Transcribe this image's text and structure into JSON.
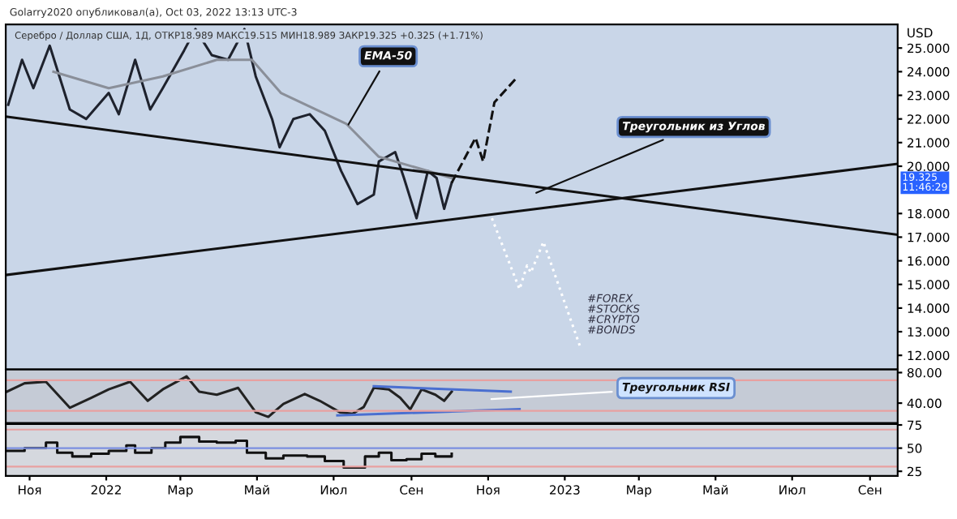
{
  "chart_data": [
    {
      "type": "line",
      "title": "Golarry2020 опубликовал(а), Oct 03, 2022 13:13 UTC-3",
      "subtitle": "Серебро / Доллар США, 1Д, ОТКР18.989 МАКС19.515 МИН18.989 ЗАКР19.325 +0.325 (+1.71%)",
      "ylabel": "USD",
      "xlim": [
        "2021-10-13",
        "2023-09-23"
      ],
      "ylim": [
        11.4,
        26.0
      ],
      "yticks": [
        {
          "value": 12,
          "label": "12.000"
        },
        {
          "value": 13,
          "label": "13.000"
        },
        {
          "value": 14,
          "label": "14.000"
        },
        {
          "value": 15,
          "label": "15.000"
        },
        {
          "value": 16,
          "label": "16.000"
        },
        {
          "value": 17,
          "label": "17.000"
        },
        {
          "value": 18,
          "label": "18.000"
        },
        {
          "value": 20,
          "label": "20.000"
        },
        {
          "value": 21,
          "label": "21.000"
        },
        {
          "value": 22,
          "label": "22.000"
        },
        {
          "value": 23,
          "label": "23.000"
        },
        {
          "value": 24,
          "label": "24.000"
        },
        {
          "value": 25,
          "label": "25.000"
        }
      ],
      "xticks": [
        {
          "value": "2021-11-01",
          "label": null
        },
        {
          "value": "2022-01-01",
          "label": null
        },
        {
          "value": "2022-03-01",
          "label": null
        },
        {
          "value": "2022-05-01",
          "label": null
        },
        {
          "value": "2022-07-01",
          "label": null
        },
        {
          "value": "2022-09-01",
          "label": null
        },
        {
          "value": "2022-11-01",
          "label": null
        },
        {
          "value": "2023-01-01",
          "label": null
        },
        {
          "value": "2023-03-01",
          "label": null
        },
        {
          "value": "2023-05-01",
          "label": null
        },
        {
          "value": "2023-07-01",
          "label": null
        },
        {
          "value": "2023-09-01",
          "label": null
        }
      ],
      "tick_labels": "y",
      "grid": false,
      "series": [
        {
          "color": "#1e222d",
          "x": [
            "2021-10-15",
            "2021-10-26",
            "2021-11-04",
            "2021-11-17",
            "2021-12-03",
            "2021-12-16",
            "2022-01-03",
            "2022-01-11",
            "2022-01-24",
            "2022-02-05",
            "2022-02-15",
            "2022-03-04",
            "2022-03-13",
            "2022-03-26",
            "2022-04-08",
            "2022-04-21",
            "2022-04-30",
            "2022-05-13",
            "2022-05-19",
            "2022-05-30",
            "2022-06-12",
            "2022-06-24",
            "2022-07-07",
            "2022-07-20",
            "2022-08-02",
            "2022-08-06",
            "2022-08-19",
            "2022-08-26",
            "2022-09-05",
            "2022-09-14",
            "2022-09-21",
            "2022-09-27",
            "2022-10-03"
          ],
          "values": [
            22.6,
            24.5,
            23.3,
            25.1,
            22.4,
            22.0,
            23.1,
            22.2,
            24.5,
            22.4,
            23.3,
            24.9,
            25.8,
            24.7,
            24.5,
            25.8,
            23.8,
            22.0,
            20.8,
            22.0,
            22.2,
            21.5,
            19.8,
            18.4,
            18.8,
            20.2,
            20.6,
            19.5,
            17.8,
            19.8,
            19.5,
            18.2,
            19.3
          ]
        },
        {
          "color": "#8a8f99",
          "x": [
            "2021-11-20",
            "2022-01-03",
            "2022-02-15",
            "2022-03-30",
            "2022-04-27",
            "2022-05-20",
            "2022-07-11",
            "2022-08-06",
            "2022-09-14",
            "2022-10-03"
          ],
          "values": [
            24.0,
            23.3,
            23.8,
            24.5,
            24.5,
            23.1,
            21.8,
            20.4,
            19.8,
            19.5
          ]
        },
        {
          "color": "#111111",
          "x": [
            "2021-10-13",
            "2023-09-23"
          ],
          "values": [
            22.1,
            17.1
          ]
        },
        {
          "color": "#111111",
          "x": [
            "2021-10-13",
            "2023-09-23"
          ],
          "values": [
            15.4,
            20.1
          ]
        },
        {
          "color": "#111111",
          "line_style": "dashed",
          "x": [
            "2022-10-03",
            "2022-10-22",
            "2022-10-28",
            "2022-11-06",
            "2022-11-23"
          ],
          "values": [
            19.3,
            21.2,
            20.2,
            22.7,
            23.7
          ]
        },
        {
          "color": "#ffffff",
          "line_style": "dotted",
          "x": [
            "2022-11-04",
            "2022-11-26",
            "2022-12-02",
            "2022-12-05",
            "2022-12-15",
            "2023-01-13"
          ],
          "values": [
            17.8,
            14.8,
            15.8,
            15.5,
            16.8,
            12.4
          ]
        }
      ],
      "annotations": [
        {
          "text": "EMA-50",
          "x": "2022-07-11",
          "y": 21.6
        },
        {
          "text": "Треугольник из Углов",
          "x": "2022-12-06",
          "y": 18.8
        },
        "#FOREX\n#STOCKS\n#CRYPTO\n#BONDS",
        "19.325\n11:46:29"
      ]
    },
    {
      "type": "line",
      "xlim": [
        "2021-10-13",
        "2023-09-23"
      ],
      "ylim": [
        14,
        84
      ],
      "yticks": [
        {
          "value": 40,
          "label": "40.00"
        },
        {
          "value": 80,
          "label": "80.00"
        }
      ],
      "xticks": [
        {
          "value": "2021-11-01",
          "label": null
        },
        {
          "value": "2022-01-01",
          "label": null
        },
        {
          "value": "2022-03-01",
          "label": null
        },
        {
          "value": "2022-05-01",
          "label": null
        },
        {
          "value": "2022-07-01",
          "label": null
        },
        {
          "value": "2022-09-01",
          "label": null
        },
        {
          "value": "2022-11-01",
          "label": null
        },
        {
          "value": "2023-01-01",
          "label": null
        },
        {
          "value": "2023-03-01",
          "label": null
        },
        {
          "value": "2023-05-01",
          "label": null
        },
        {
          "value": "2023-07-01",
          "label": null
        },
        {
          "value": "2023-09-01",
          "label": null
        }
      ],
      "tick_labels": "y",
      "grid": false,
      "ref_lines": [
        {
          "axis": "y",
          "value": 70,
          "color": "#e8a0a0"
        },
        {
          "axis": "y",
          "value": 30,
          "color": "#e8a0a0"
        }
      ],
      "series": [
        {
          "color": "#222222",
          "x": [
            "2021-10-14",
            "2021-10-28",
            "2021-11-14",
            "2021-12-03",
            "2021-12-20",
            "2022-01-03",
            "2022-01-20",
            "2022-02-03",
            "2022-02-15",
            "2022-03-06",
            "2022-03-16",
            "2022-03-30",
            "2022-04-16",
            "2022-04-30",
            "2022-05-10",
            "2022-05-22",
            "2022-06-08",
            "2022-06-20",
            "2022-07-06",
            "2022-07-16",
            "2022-07-25",
            "2022-08-02",
            "2022-08-14",
            "2022-08-23",
            "2022-08-31",
            "2022-09-09",
            "2022-09-20",
            "2022-09-27",
            "2022-10-03"
          ],
          "values": [
            55,
            66,
            68,
            34,
            47,
            58,
            68,
            43,
            58,
            75,
            55,
            51,
            60,
            28,
            22,
            39,
            52,
            43,
            28,
            26,
            35,
            60,
            58,
            47,
            32,
            58,
            51,
            43,
            55
          ]
        },
        {
          "color": "#4a6fd0",
          "x": [
            "2022-08-02",
            "2022-11-19"
          ],
          "values": [
            62,
            55
          ]
        },
        {
          "color": "#4a6fd0",
          "x": [
            "2022-07-04",
            "2022-11-26"
          ],
          "values": [
            24,
            32
          ]
        }
      ],
      "annotations": [
        {
          "text": "Треугольник RSI",
          "x": "2022-10-31",
          "y": 45
        }
      ]
    },
    {
      "type": "step",
      "xlim": [
        "2021-10-13",
        "2023-09-23"
      ],
      "ylim": [
        20,
        76
      ],
      "yticks": [
        25,
        50,
        75
      ],
      "xticks": [
        {
          "value": "2021-11-01",
          "label": "Ноя"
        },
        {
          "value": "2022-01-01",
          "label": "2022"
        },
        {
          "value": "2022-03-01",
          "label": "Мар"
        },
        {
          "value": "2022-05-01",
          "label": "Май"
        },
        {
          "value": "2022-07-01",
          "label": "Июл"
        },
        {
          "value": "2022-09-01",
          "label": "Сен"
        },
        {
          "value": "2022-11-01",
          "label": "Ноя"
        },
        {
          "value": "2023-01-01",
          "label": "2023"
        },
        {
          "value": "2023-03-01",
          "label": "Мар"
        },
        {
          "value": "2023-05-01",
          "label": "Май"
        },
        {
          "value": "2023-07-01",
          "label": "Июл"
        },
        {
          "value": "2023-09-01",
          "label": "Сен"
        }
      ],
      "grid": false,
      "ref_lines": [
        {
          "axis": "y",
          "value": 70,
          "color": "#e8a0a0"
        },
        {
          "axis": "y",
          "value": 50,
          "color": "#7b8fe0"
        },
        {
          "axis": "y",
          "value": 30,
          "color": "#e8a0a0"
        }
      ],
      "series": [
        {
          "color": "#111111",
          "x": [
            "2021-10-14",
            "2021-10-28",
            "2021-11-14",
            "2021-11-23",
            "2021-12-05",
            "2021-12-20",
            "2022-01-03",
            "2022-01-17",
            "2022-01-24",
            "2022-02-06",
            "2022-02-17",
            "2022-03-01",
            "2022-03-16",
            "2022-03-30",
            "2022-04-14",
            "2022-04-23",
            "2022-05-08",
            "2022-05-22",
            "2022-06-10",
            "2022-06-24",
            "2022-07-09",
            "2022-07-23",
            "2022-07-26",
            "2022-08-06",
            "2022-08-16",
            "2022-08-28",
            "2022-09-09",
            "2022-09-20",
            "2022-10-03"
          ],
          "values": [
            47,
            50,
            56,
            45,
            41,
            44,
            47,
            53,
            45,
            50,
            56,
            62,
            57,
            56,
            58,
            45,
            39,
            42,
            41,
            36,
            29,
            29,
            41,
            45,
            37,
            38,
            44,
            41,
            44
          ]
        }
      ]
    }
  ]
}
